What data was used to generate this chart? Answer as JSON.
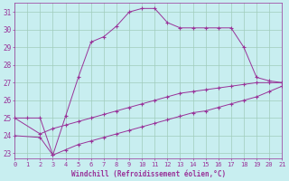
{
  "xlabel": "Windchill (Refroidissement éolien,°C)",
  "background_color": "#c8eef0",
  "grid_color": "#a0ccbb",
  "line_color": "#993399",
  "spine_color": "#993399",
  "x_ticks": [
    0,
    1,
    2,
    3,
    4,
    5,
    6,
    7,
    8,
    9,
    10,
    11,
    12,
    13,
    14,
    15,
    16,
    17,
    18,
    19,
    20,
    21
  ],
  "y_ticks": [
    23,
    24,
    25,
    26,
    27,
    28,
    29,
    30,
    31
  ],
  "xlim": [
    0,
    21
  ],
  "ylim": [
    22.7,
    31.5
  ],
  "line1_x": [
    0,
    1,
    2,
    3,
    4,
    5,
    6,
    7,
    8,
    9,
    10,
    11,
    12,
    13,
    14,
    15,
    16,
    17,
    18,
    19,
    20,
    21
  ],
  "line1_y": [
    25.0,
    25.0,
    25.0,
    22.9,
    25.1,
    27.3,
    29.3,
    29.6,
    30.2,
    31.0,
    31.2,
    31.2,
    30.4,
    30.1,
    30.1,
    30.1,
    30.1,
    30.1,
    29.0,
    27.3,
    27.1,
    27.0
  ],
  "line2_x": [
    0,
    2,
    3,
    4,
    5,
    6,
    7,
    8,
    9,
    10,
    11,
    12,
    13,
    14,
    15,
    16,
    17,
    18,
    19,
    20,
    21
  ],
  "line2_y": [
    25.0,
    24.1,
    24.4,
    24.6,
    24.8,
    25.0,
    25.2,
    25.4,
    25.6,
    25.8,
    26.0,
    26.2,
    26.4,
    26.5,
    26.6,
    26.7,
    26.8,
    26.9,
    27.0,
    27.0,
    27.0
  ],
  "line3_x": [
    0,
    2,
    3,
    4,
    5,
    6,
    7,
    8,
    9,
    10,
    11,
    12,
    13,
    14,
    15,
    16,
    17,
    18,
    19,
    20,
    21
  ],
  "line3_y": [
    24.0,
    23.9,
    22.9,
    23.2,
    23.5,
    23.7,
    23.9,
    24.1,
    24.3,
    24.5,
    24.7,
    24.9,
    25.1,
    25.3,
    25.4,
    25.6,
    25.8,
    26.0,
    26.2,
    26.5,
    26.8
  ],
  "figwidth": 3.2,
  "figheight": 2.0,
  "dpi": 100
}
